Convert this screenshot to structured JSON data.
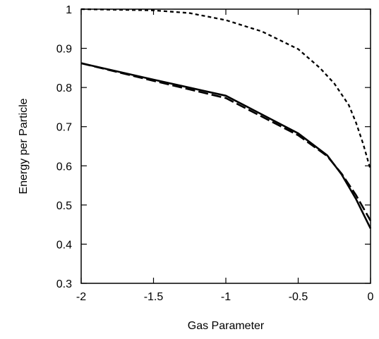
{
  "chart_data": {
    "type": "line",
    "title": "",
    "xlabel": "Gas Parameter",
    "ylabel": "Energy per Particle",
    "xlim": [
      -2,
      0
    ],
    "ylim": [
      0.3,
      1
    ],
    "x_ticks": [
      -2,
      -1.5,
      -1,
      -0.5,
      0
    ],
    "x_tick_labels": [
      "-2",
      "-1.5",
      "-1",
      "-0.5",
      "0"
    ],
    "y_ticks": [
      0.3,
      0.4,
      0.5,
      0.6,
      0.7,
      0.8,
      0.9,
      1
    ],
    "y_tick_labels": [
      "0.3",
      "0.4",
      "0.5",
      "0.6",
      "0.7",
      "0.8",
      "0.9",
      "1"
    ],
    "grid": false,
    "legend": "none",
    "series": [
      {
        "style": "solid",
        "color": "#000000",
        "x": [
          -2,
          -1.5,
          -1,
          -0.5,
          -0.3,
          -0.2,
          -0.1,
          0
        ],
        "y": [
          0.862,
          0.82,
          0.779,
          0.683,
          0.627,
          0.578,
          0.515,
          0.44
        ]
      },
      {
        "style": "long-dash",
        "color": "#000000",
        "x": [
          -2,
          -1.5,
          -1,
          -0.5,
          -0.3,
          -0.2,
          -0.1,
          0
        ],
        "y": [
          0.862,
          0.817,
          0.773,
          0.678,
          0.625,
          0.58,
          0.525,
          0.46
        ]
      },
      {
        "style": "short-dash",
        "color": "#000000",
        "x": [
          -2,
          -1.5,
          -1.25,
          -1,
          -0.75,
          -0.5,
          -0.35,
          -0.25,
          -0.15,
          -0.1,
          -0.05,
          0
        ],
        "y": [
          1.0,
          0.997,
          0.99,
          0.972,
          0.943,
          0.898,
          0.85,
          0.81,
          0.755,
          0.71,
          0.655,
          0.59
        ]
      }
    ]
  }
}
